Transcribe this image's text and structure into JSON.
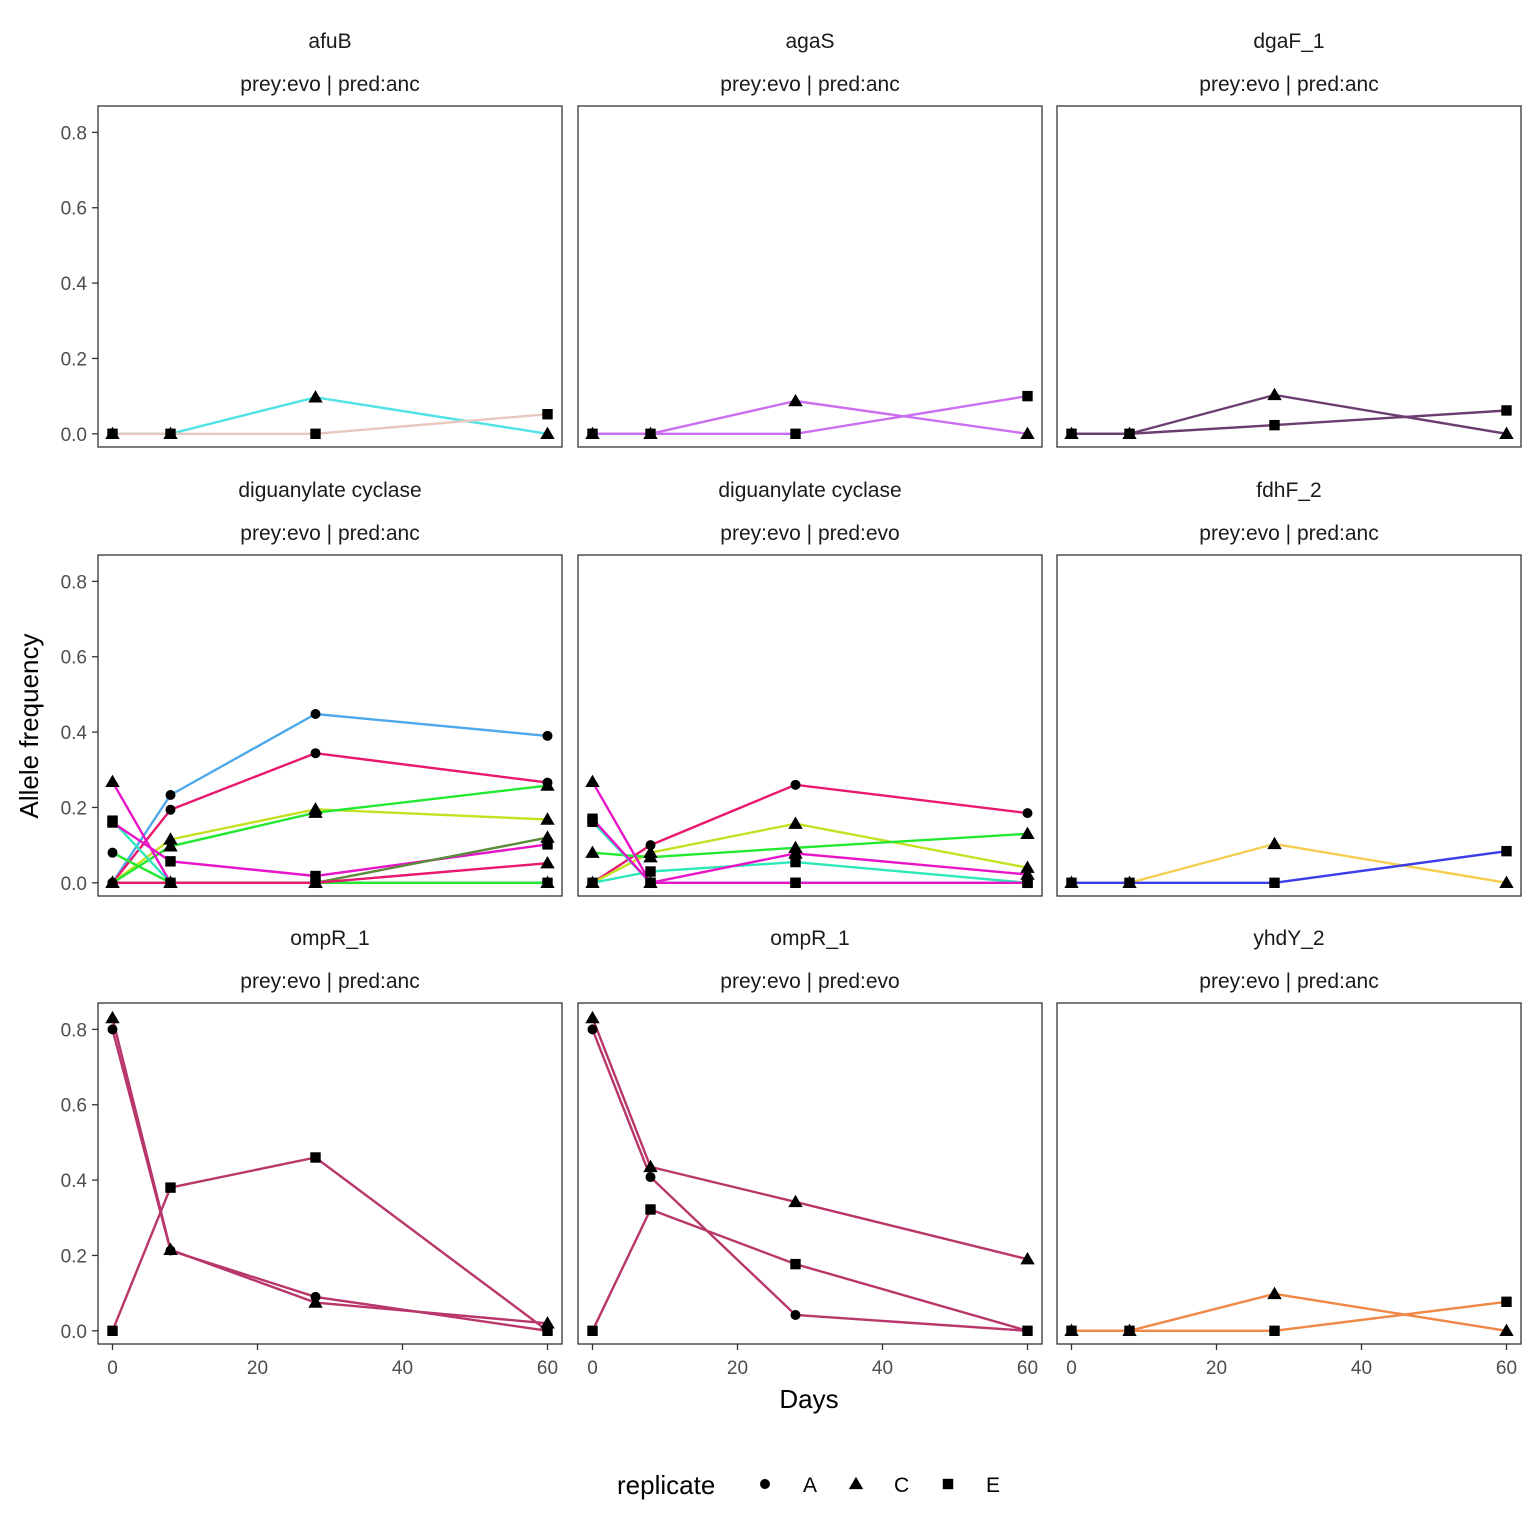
{
  "chart_data": {
    "type": "line",
    "xlabel": "Days",
    "ylabel": "Allele frequency",
    "xlim": [
      -2,
      62
    ],
    "ylim": [
      -0.035,
      0.87
    ],
    "x_ticks": [
      0,
      20,
      40,
      60
    ],
    "y_ticks": [
      0.0,
      0.2,
      0.4,
      0.6,
      0.8
    ],
    "x_tick_labels": [
      "0",
      "20",
      "40",
      "60"
    ],
    "y_tick_labels": [
      "0.0",
      "0.2",
      "0.4",
      "0.6",
      "0.8"
    ],
    "grid": false,
    "legend": {
      "title": "replicate",
      "placement": "bottom",
      "entries": [
        {
          "label": "A",
          "shape": "circle"
        },
        {
          "label": "C",
          "shape": "triangle"
        },
        {
          "label": "E",
          "shape": "square"
        }
      ]
    },
    "panels": [
      {
        "gene": "afuB",
        "treatment": "prey:evo | pred:anc",
        "series": [
          {
            "replicate": "C",
            "color": "#4fe3e8",
            "x": [
              0,
              8,
              28,
              60
            ],
            "y": [
              0,
              0,
              0.097,
              0
            ]
          },
          {
            "replicate": "E",
            "color": "#e6c8c0",
            "x": [
              0,
              8,
              28,
              60
            ],
            "y": [
              0,
              0,
              0,
              0.052
            ]
          }
        ]
      },
      {
        "gene": "agaS",
        "treatment": "prey:evo | pred:anc",
        "series": [
          {
            "replicate": "C",
            "color": "#cc6ef0",
            "x": [
              0,
              8,
              28,
              60
            ],
            "y": [
              0,
              0,
              0.087,
              0
            ]
          },
          {
            "replicate": "E",
            "color": "#cc6ef0",
            "x": [
              0,
              8,
              28,
              60
            ],
            "y": [
              0,
              0,
              0,
              0.1
            ]
          }
        ]
      },
      {
        "gene": "dgaF_1",
        "treatment": "prey:evo | pred:anc",
        "series": [
          {
            "replicate": "C",
            "color": "#6b3c70",
            "x": [
              0,
              8,
              28,
              60
            ],
            "y": [
              0,
              0,
              0.103,
              0
            ]
          },
          {
            "replicate": "E",
            "color": "#6b3c70",
            "x": [
              0,
              8,
              28,
              60
            ],
            "y": [
              0,
              0,
              0.023,
              0.062
            ]
          }
        ]
      },
      {
        "gene": "diguanylate cyclase",
        "treatment": "prey:evo | pred:anc",
        "series": [
          {
            "replicate": "A",
            "color": "#4fa8ea",
            "x": [
              0,
              8,
              28,
              60
            ],
            "y": [
              0,
              0.233,
              0.448,
              0.39
            ]
          },
          {
            "replicate": "A",
            "color": "#e8186e",
            "x": [
              0,
              8,
              28,
              60
            ],
            "y": [
              0,
              0.194,
              0.344,
              0.266
            ]
          },
          {
            "replicate": "C",
            "color": "#c4e020",
            "x": [
              0,
              8,
              28,
              60
            ],
            "y": [
              0,
              0.115,
              0.195,
              0.168
            ]
          },
          {
            "replicate": "C",
            "color": "#22e830",
            "x": [
              0,
              8,
              28,
              60
            ],
            "y": [
              0,
              0.097,
              0.186,
              0.258
            ]
          },
          {
            "replicate": "C",
            "color": "#e814c8",
            "x": [
              0,
              8,
              28,
              60
            ],
            "y": [
              0.268,
              0,
              0,
              0
            ]
          },
          {
            "replicate": "E",
            "color": "#2ee8b8",
            "x": [
              0,
              8,
              28,
              60
            ],
            "y": [
              0.165,
              0,
              0,
              0
            ]
          },
          {
            "replicate": "E",
            "color": "#e814c8",
            "x": [
              0,
              8,
              28,
              60
            ],
            "y": [
              0.16,
              0.057,
              0.018,
              0.102
            ]
          },
          {
            "replicate": "A",
            "color": "#22e830",
            "x": [
              0,
              8,
              28,
              60
            ],
            "y": [
              0.08,
              0,
              0,
              0
            ]
          },
          {
            "replicate": "C",
            "color": "#5a8a3a",
            "x": [
              0,
              8,
              28,
              60
            ],
            "y": [
              0,
              0,
              0,
              0.12
            ]
          },
          {
            "replicate": "C",
            "color": "#e8186e",
            "x": [
              0,
              8,
              28,
              60
            ],
            "y": [
              0,
              0,
              0,
              0.052
            ]
          }
        ]
      },
      {
        "gene": "diguanylate cyclase",
        "treatment": "prey:evo | pred:evo",
        "series": [
          {
            "replicate": "A",
            "color": "#e8186e",
            "x": [
              0,
              8,
              28,
              60
            ],
            "y": [
              0,
              0.1,
              0.26,
              0.185
            ]
          },
          {
            "replicate": "C",
            "color": "#c4e020",
            "x": [
              0,
              8,
              28,
              60
            ],
            "y": [
              0,
              0.08,
              0.157,
              0.04
            ]
          },
          {
            "replicate": "C",
            "color": "#22e830",
            "x": [
              0,
              8,
              28,
              60
            ],
            "y": [
              0.08,
              0.068,
              0.093,
              0.13
            ]
          },
          {
            "replicate": "E",
            "color": "#2ee8b8",
            "x": [
              0,
              8,
              28,
              60
            ],
            "y": [
              0,
              0.03,
              0.055,
              0
            ]
          },
          {
            "replicate": "C",
            "color": "#e814c8",
            "x": [
              0,
              8,
              28,
              60
            ],
            "y": [
              0.268,
              0,
              0.078,
              0.022
            ]
          },
          {
            "replicate": "E",
            "color": "#2ee8b8",
            "x": [
              0,
              8,
              28,
              60
            ],
            "y": [
              0.162,
              0,
              0,
              0
            ]
          },
          {
            "replicate": "E",
            "color": "#e814c8",
            "x": [
              0,
              8,
              28,
              60
            ],
            "y": [
              0.17,
              0,
              0,
              0
            ]
          }
        ]
      },
      {
        "gene": "fdhF_2",
        "treatment": "prey:evo | pred:anc",
        "series": [
          {
            "replicate": "C",
            "color": "#f5ce50",
            "x": [
              0,
              8,
              28,
              60
            ],
            "y": [
              0,
              0,
              0.103,
              0
            ]
          },
          {
            "replicate": "E",
            "color": "#3c3ce8",
            "x": [
              0,
              8,
              28,
              60
            ],
            "y": [
              0,
              0,
              0,
              0.084
            ]
          }
        ]
      },
      {
        "gene": "ompR_1",
        "treatment": "prey:evo | pred:anc",
        "series": [
          {
            "replicate": "A",
            "color": "#b8366a",
            "x": [
              0,
              8,
              28,
              60
            ],
            "y": [
              0.8,
              0.213,
              0.09,
              0
            ]
          },
          {
            "replicate": "C",
            "color": "#b8366a",
            "x": [
              0,
              8,
              28,
              60
            ],
            "y": [
              0.83,
              0.215,
              0.075,
              0.02
            ]
          },
          {
            "replicate": "E",
            "color": "#b8366a",
            "x": [
              0,
              8,
              28,
              60
            ],
            "y": [
              0,
              0.38,
              0.46,
              0
            ]
          }
        ]
      },
      {
        "gene": "ompR_1",
        "treatment": "prey:evo | pred:evo",
        "series": [
          {
            "replicate": "A",
            "color": "#b8366a",
            "x": [
              0,
              8,
              28,
              60
            ],
            "y": [
              0.8,
              0.408,
              0.042,
              0
            ]
          },
          {
            "replicate": "C",
            "color": "#b8366a",
            "x": [
              0,
              8,
              28,
              60
            ],
            "y": [
              0.83,
              0.435,
              0.342,
              0.19
            ]
          },
          {
            "replicate": "E",
            "color": "#b8366a",
            "x": [
              0,
              8,
              28,
              60
            ],
            "y": [
              0,
              0.322,
              0.177,
              0
            ]
          }
        ]
      },
      {
        "gene": "yhdY_2",
        "treatment": "prey:evo | pred:anc",
        "series": [
          {
            "replicate": "C",
            "color": "#f08848",
            "x": [
              0,
              8,
              28,
              60
            ],
            "y": [
              0,
              0,
              0.098,
              0
            ]
          },
          {
            "replicate": "E",
            "color": "#f08848",
            "x": [
              0,
              8,
              28,
              60
            ],
            "y": [
              0,
              0,
              0,
              0.077
            ]
          }
        ]
      }
    ]
  }
}
